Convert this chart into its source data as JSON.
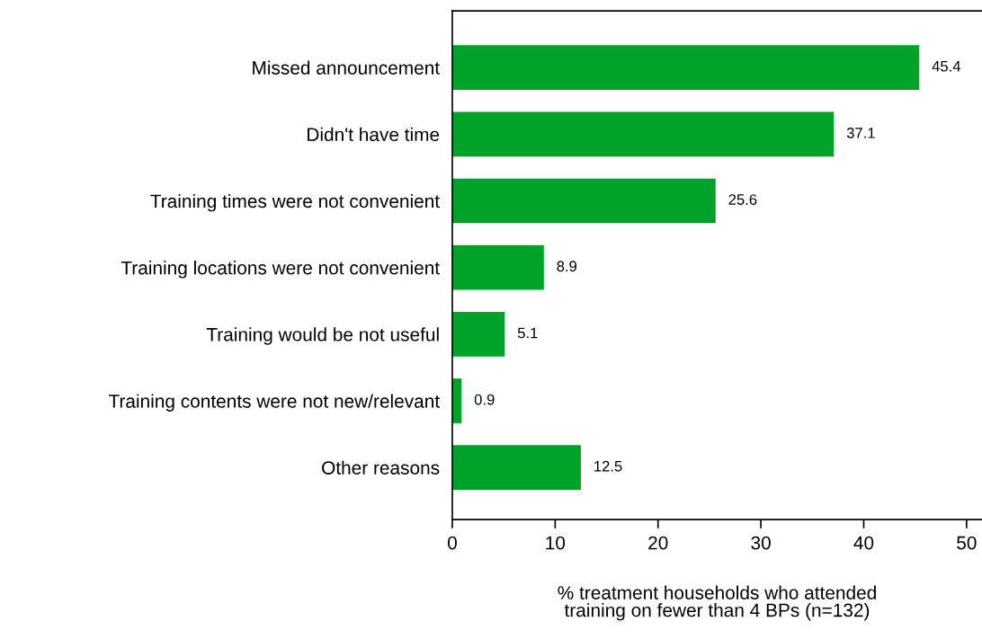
{
  "chart_data": {
    "type": "bar",
    "orientation": "horizontal",
    "categories": [
      "Missed announcement",
      "Didn't have time",
      "Training times were not convenient",
      "Training locations were not convenient",
      "Training would be not useful",
      "Training contents were not new/relevant",
      "Other reasons"
    ],
    "values": [
      45.4,
      37.1,
      25.6,
      8.9,
      5.1,
      0.9,
      12.5
    ],
    "color": "#00a32a",
    "xlabel": "% treatment households who attended\ntraining on fewer than 4 BPs (n=132)",
    "xlim": [
      0,
      51.5
    ],
    "xticks": [
      0,
      10,
      20,
      30,
      40,
      50
    ],
    "data_labels": true,
    "grid": false
  }
}
